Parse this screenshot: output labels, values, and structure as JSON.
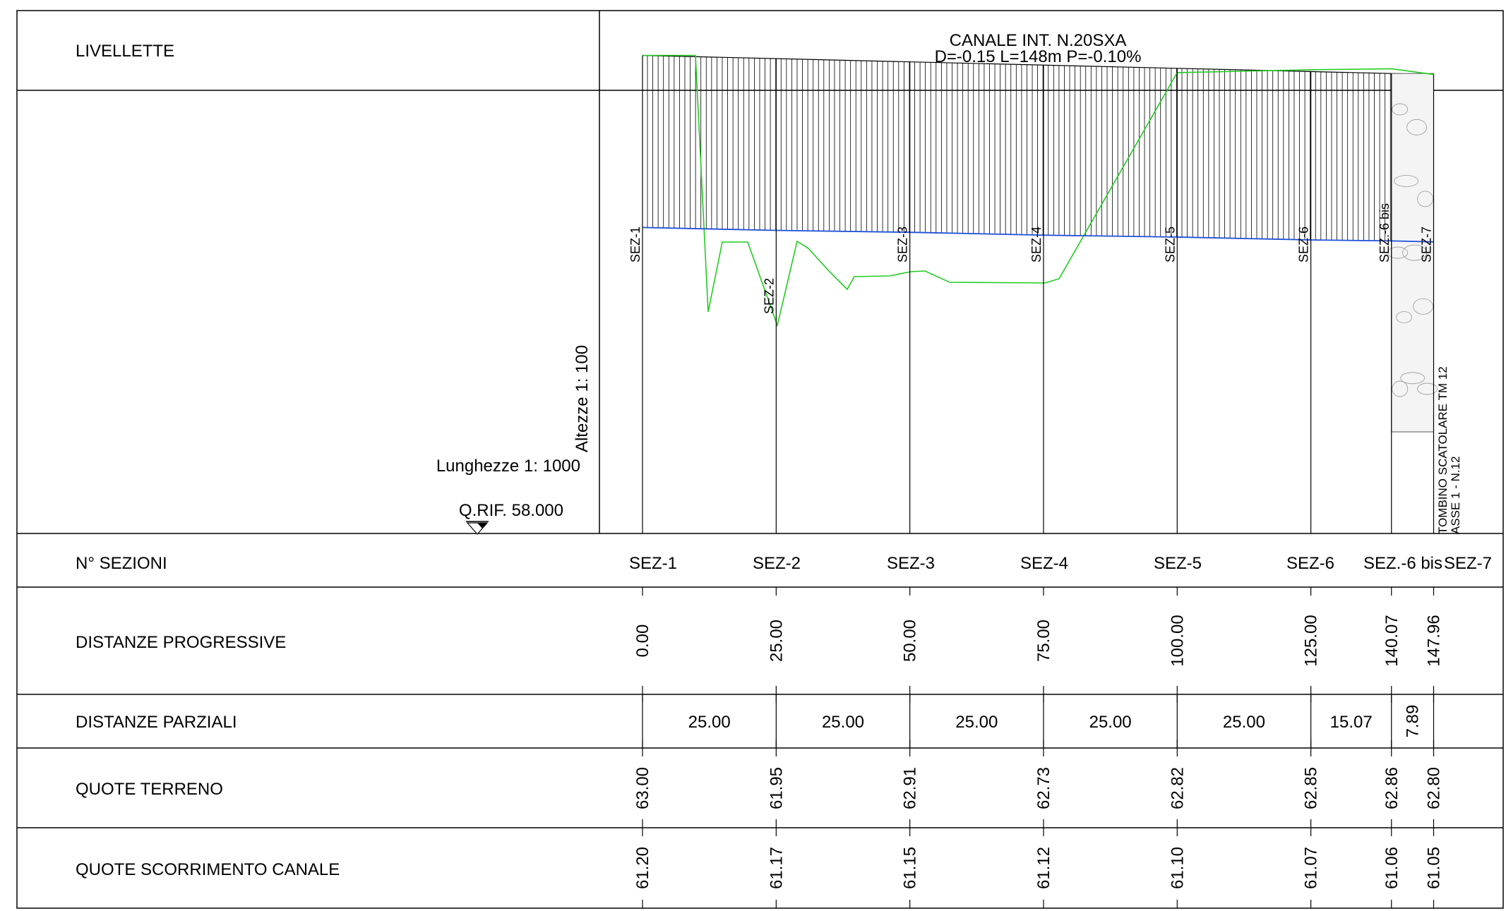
{
  "header": {
    "left_label": "LIVELLETTE",
    "title": "CANALE INT. N.20SXA",
    "subtitle": "D=-0.15 L=148m P=-0.10%"
  },
  "scales": {
    "vertical": "Altezze 1: 100",
    "horizontal": "Lunghezze 1: 1000",
    "reference": "Q.RIF. 58.000"
  },
  "structure_label": {
    "line1": "TOMBINO SCATOLARE TM 12",
    "line2": "ASSE 1 - N.12"
  },
  "rows": {
    "sections": "N° SEZIONI",
    "progressive": "DISTANZE PROGRESSIVE",
    "partial": "DISTANZE PARZIALI",
    "ground": "QUOTE TERRENO",
    "channel": "QUOTE SCORRIMENTO CANALE"
  },
  "sections": [
    {
      "name": "SEZ-1",
      "progressive": "0.00",
      "ground": "63.00",
      "channel": "61.20"
    },
    {
      "name": "SEZ-2",
      "progressive": "25.00",
      "ground": "61.95",
      "channel": "61.17"
    },
    {
      "name": "SEZ-3",
      "progressive": "50.00",
      "ground": "62.91",
      "channel": "61.15"
    },
    {
      "name": "SEZ-4",
      "progressive": "75.00",
      "ground": "62.73",
      "channel": "61.12"
    },
    {
      "name": "SEZ-5",
      "progressive": "100.00",
      "ground": "62.82",
      "channel": "61.10"
    },
    {
      "name": "SEZ-6",
      "progressive": "125.00",
      "ground": "62.85",
      "channel": "61.07"
    },
    {
      "name": "SEZ.-6 bis",
      "progressive": "140.07",
      "ground": "62.86",
      "channel": "61.06"
    },
    {
      "name": "SEZ-7",
      "progressive": "147.96",
      "ground": "62.80",
      "channel": "61.05"
    }
  ],
  "partials": [
    "25.00",
    "25.00",
    "25.00",
    "25.00",
    "25.00",
    "15.07",
    "7.89"
  ],
  "colors": {
    "ground_line": "#22cc22",
    "channel_line": "#1f4fd8",
    "frame": "#000000"
  },
  "chart_data": {
    "type": "line",
    "x": [
      0.0,
      25.0,
      50.0,
      75.0,
      100.0,
      125.0,
      140.07,
      147.96
    ],
    "series": [
      {
        "values": [
          63.0,
          61.95,
          62.91,
          62.73,
          62.82,
          62.85,
          62.86,
          62.8
        ]
      },
      {
        "values": [
          61.2,
          61.17,
          61.15,
          61.12,
          61.1,
          61.07,
          61.06,
          61.05
        ]
      }
    ],
    "reference_level": 58.0
  }
}
